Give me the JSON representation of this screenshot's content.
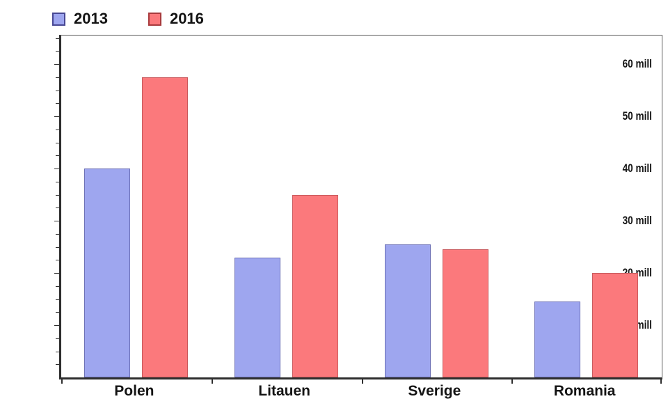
{
  "chart_data": {
    "type": "bar",
    "title": "",
    "categories": [
      "Polen",
      "Litauen",
      "Sverige",
      "Romania"
    ],
    "series": [
      {
        "name": "2013",
        "color": "#9ea6ef",
        "border_color": "#6b6fb5",
        "values": [
          40,
          23,
          25.5,
          14.5
        ]
      },
      {
        "name": "2016",
        "color": "#fb797c",
        "border_color": "#c9595c",
        "values": [
          57.5,
          35,
          24.5,
          20
        ]
      }
    ],
    "xlabel": "",
    "ylabel": "",
    "ylim": [
      0,
      65.5
    ],
    "ytick_values": [
      10,
      20,
      30,
      40,
      50,
      60
    ],
    "ytick_labels": [
      "10 mill",
      "20 mill",
      "30 mill",
      "40 mill",
      "50 mill",
      "60 mill"
    ],
    "minor_tick_step": 2.5,
    "grid": false,
    "legend_position": "top-left",
    "axis_color": "#2e2e2e",
    "background_color": "#ffffff"
  },
  "legend": {
    "items": [
      {
        "label": "2013",
        "swatch_fill": "#9ea6ef",
        "swatch_border": "#474793"
      },
      {
        "label": "2016",
        "swatch_fill": "#fb797c",
        "swatch_border": "#a83a3d"
      }
    ]
  }
}
